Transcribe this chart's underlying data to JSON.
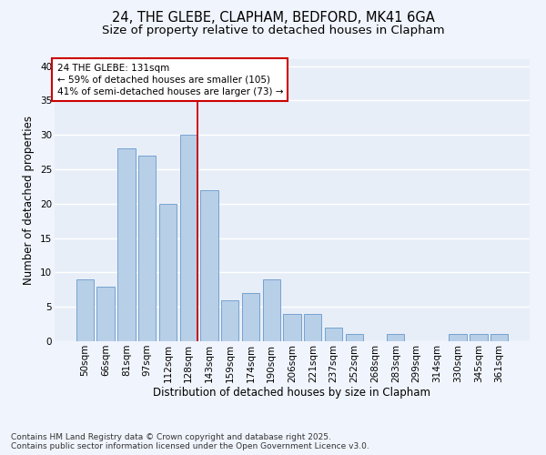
{
  "title_line1": "24, THE GLEBE, CLAPHAM, BEDFORD, MK41 6GA",
  "title_line2": "Size of property relative to detached houses in Clapham",
  "xlabel": "Distribution of detached houses by size in Clapham",
  "ylabel": "Number of detached properties",
  "categories": [
    "50sqm",
    "66sqm",
    "81sqm",
    "97sqm",
    "112sqm",
    "128sqm",
    "143sqm",
    "159sqm",
    "174sqm",
    "190sqm",
    "206sqm",
    "221sqm",
    "237sqm",
    "252sqm",
    "268sqm",
    "283sqm",
    "299sqm",
    "314sqm",
    "330sqm",
    "345sqm",
    "361sqm"
  ],
  "values": [
    9,
    8,
    28,
    27,
    20,
    30,
    22,
    6,
    7,
    9,
    4,
    4,
    2,
    1,
    0,
    1,
    0,
    0,
    1,
    1,
    1
  ],
  "bar_color": "#b8cfe8",
  "bar_edge_color": "#6699cc",
  "bg_color": "#e8eef8",
  "grid_color": "#ffffff",
  "fig_bg_color": "#f0f4fc",
  "redline_index": 5,
  "redline_label": "24 THE GLEBE: 131sqm",
  "annotation_line1": "← 59% of detached houses are smaller (105)",
  "annotation_line2": "41% of semi-detached houses are larger (73) →",
  "annotation_box_color": "#ffffff",
  "annotation_box_edge": "#cc0000",
  "redline_color": "#cc0000",
  "footer_line1": "Contains HM Land Registry data © Crown copyright and database right 2025.",
  "footer_line2": "Contains public sector information licensed under the Open Government Licence v3.0.",
  "ylim": [
    0,
    41
  ],
  "yticks": [
    0,
    5,
    10,
    15,
    20,
    25,
    30,
    35,
    40
  ],
  "title_fontsize": 10.5,
  "subtitle_fontsize": 9.5,
  "axis_label_fontsize": 8.5,
  "tick_fontsize": 7.5,
  "footer_fontsize": 6.5,
  "annotation_fontsize": 7.5
}
